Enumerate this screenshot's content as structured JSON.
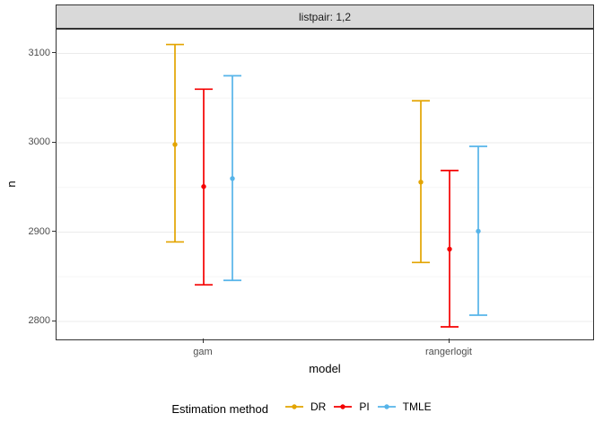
{
  "chart_data": {
    "type": "pointrange",
    "facet_label": "listpair: 1,2",
    "xlabel": "model",
    "ylabel": "n",
    "categories": [
      "gam",
      "rangerlogit"
    ],
    "y_axis": {
      "major_ticks": [
        2800,
        2900,
        3000,
        3100
      ],
      "minor_ticks": [
        2850,
        2950,
        3050
      ],
      "range": [
        2778,
        3127
      ]
    },
    "series": [
      {
        "name": "DR",
        "color": "#E3A400",
        "points": [
          {
            "category": "gam",
            "estimate": 2998,
            "lower": 2889,
            "upper": 3110
          },
          {
            "category": "rangerlogit",
            "estimate": 2956,
            "lower": 2866,
            "upper": 3047
          }
        ]
      },
      {
        "name": "PI",
        "color": "#F40000",
        "points": [
          {
            "category": "gam",
            "estimate": 2951,
            "lower": 2841,
            "upper": 3060
          },
          {
            "category": "rangerlogit",
            "estimate": 2881,
            "lower": 2794,
            "upper": 2969
          }
        ]
      },
      {
        "name": "TMLE",
        "color": "#56B4E9",
        "points": [
          {
            "category": "gam",
            "estimate": 2960,
            "lower": 2846,
            "upper": 3075
          },
          {
            "category": "rangerlogit",
            "estimate": 2901,
            "lower": 2807,
            "upper": 2996
          }
        ]
      }
    ],
    "legend": {
      "title": "Estimation method",
      "position": "bottom"
    },
    "grid": true,
    "colors": {
      "strip_fill": "#D9D9D9",
      "panel_border": "#333333",
      "grid_major": "#EBEBEB",
      "grid_minor": "#F5F5F5",
      "tick_label": "#4D4D4D"
    }
  }
}
